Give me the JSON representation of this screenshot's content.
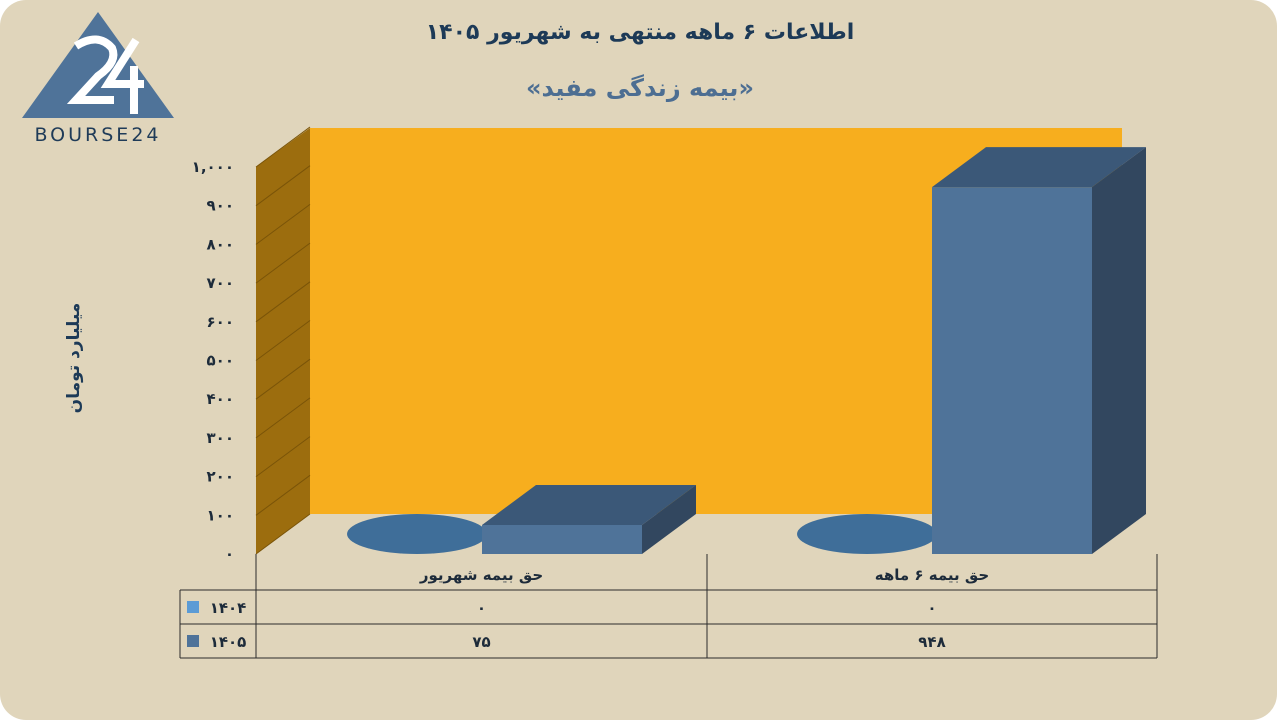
{
  "title": "اطلاعات ۶ ماهه منتهی به شهریور ۱۴۰۵",
  "subtitle": "«بیمه زندگی مفید»",
  "logo": {
    "text": "BOURSE24",
    "mark": "24"
  },
  "chart_data": {
    "type": "bar",
    "categories": [
      "حق بیمه شهریور",
      "حق بیمه ۶  ماهه"
    ],
    "series": [
      {
        "name": "۱۴۰۴",
        "values": [
          0,
          0
        ],
        "labels": [
          "۰",
          "۰"
        ],
        "color": "#5b9bd5"
      },
      {
        "name": "۱۴۰۵",
        "values": [
          75,
          948
        ],
        "labels": [
          "۷۵",
          "۹۴۸"
        ],
        "color": "#4f7399"
      }
    ],
    "ylabel": "میلیارد تومان",
    "ylim": [
      0,
      1000
    ],
    "yticks": [
      0,
      100,
      200,
      300,
      400,
      500,
      600,
      700,
      800,
      900,
      1000
    ],
    "ytick_labels": [
      "۰",
      "۱۰۰",
      "۲۰۰",
      "۳۰۰",
      "۴۰۰",
      "۵۰۰",
      "۶۰۰",
      "۷۰۰",
      "۸۰۰",
      "۹۰۰",
      "۱,۰۰۰"
    ],
    "grid": true,
    "legend": "data-table",
    "colors": {
      "wall": "#f7ae1e",
      "side_wall": "#9c6d0e",
      "background": "#e0d5bb",
      "text": "#1d3a57"
    }
  }
}
